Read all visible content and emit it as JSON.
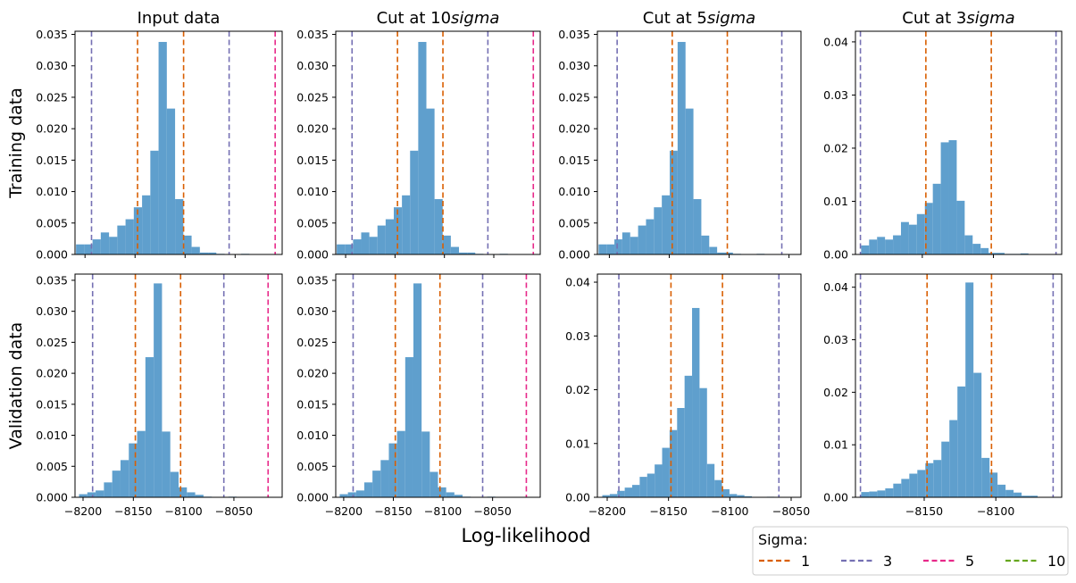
{
  "figure": {
    "xlabel": "Log-likelihood",
    "row_labels": [
      "Training data",
      "Validation data"
    ],
    "column_titles": [
      {
        "prefix": "Input data",
        "italic": ""
      },
      {
        "prefix": "Cut at 10",
        "italic": "sigma"
      },
      {
        "prefix": "Cut at 5",
        "italic": "sigma"
      },
      {
        "prefix": "Cut at 3",
        "italic": "sigma"
      }
    ]
  },
  "colors": {
    "bar": "#5f9fcd",
    "sigma_1": "#d95f02",
    "sigma_3": "#7570b3",
    "sigma_5": "#e7298a",
    "sigma_10": "#66a61e"
  },
  "legend": {
    "title": "Sigma:",
    "placement": "bottom-right",
    "entries": [
      {
        "label": "1",
        "color_key": "sigma_1"
      },
      {
        "label": "3",
        "color_key": "sigma_3"
      },
      {
        "label": "5",
        "color_key": "sigma_5"
      },
      {
        "label": "10",
        "color_key": "sigma_10"
      }
    ]
  },
  "chart_data": [
    {
      "type": "histogram",
      "row": "Training data",
      "column": "Input data",
      "xlim": [
        -8210,
        -8003
      ],
      "ylim": [
        0,
        0.0355
      ],
      "yticks": [
        0.0,
        0.005,
        0.01,
        0.015,
        0.02,
        0.025,
        0.03,
        0.035
      ],
      "ytick_labels": [
        "0.000",
        "0.005",
        "0.010",
        "0.015",
        "0.020",
        "0.025",
        "0.030",
        "0.035"
      ],
      "xticks": [
        -8200,
        -8150,
        -8100,
        -8050
      ],
      "show_xtick_labels": false,
      "bins": {
        "start": -8209,
        "width": 8.25,
        "values": [
          0.0016,
          0.0016,
          0.0024,
          0.0035,
          0.0028,
          0.0046,
          0.0056,
          0.0075,
          0.0094,
          0.0165,
          0.0338,
          0.0232,
          0.0088,
          0.003,
          0.0012,
          0.0003,
          0.0003,
          0.0001,
          0,
          0,
          0.0001,
          0,
          0,
          0,
          0
        ]
      },
      "sigma_lines": [
        {
          "level": "1",
          "x": -8147.5
        },
        {
          "level": "1",
          "x": -8101.5
        },
        {
          "level": "3",
          "x": -8193.5
        },
        {
          "level": "3",
          "x": -8056
        },
        {
          "level": "5",
          "x": -8010
        }
      ]
    },
    {
      "type": "histogram",
      "row": "Training data",
      "column": "Cut at 10sigma",
      "xlim": [
        -8210,
        -8003
      ],
      "ylim": [
        0,
        0.0355
      ],
      "yticks": [
        0.0,
        0.005,
        0.01,
        0.015,
        0.02,
        0.025,
        0.03,
        0.035
      ],
      "ytick_labels": [
        "0.000",
        "0.005",
        "0.010",
        "0.015",
        "0.020",
        "0.025",
        "0.030",
        "0.035"
      ],
      "xticks": [
        -8200,
        -8150,
        -8100,
        -8050
      ],
      "show_xtick_labels": false,
      "bins": {
        "start": -8209,
        "width": 8.25,
        "values": [
          0.0016,
          0.0016,
          0.0024,
          0.0035,
          0.0028,
          0.0046,
          0.0056,
          0.0075,
          0.0094,
          0.0165,
          0.0338,
          0.0232,
          0.0088,
          0.003,
          0.0012,
          0.0003,
          0.0003,
          0.0001,
          0,
          0,
          0.0001,
          0,
          0,
          0,
          0
        ]
      },
      "sigma_lines": [
        {
          "level": "1",
          "x": -8147.5
        },
        {
          "level": "1",
          "x": -8101.5
        },
        {
          "level": "3",
          "x": -8193.5
        },
        {
          "level": "3",
          "x": -8056
        },
        {
          "level": "5",
          "x": -8010
        }
      ]
    },
    {
      "type": "histogram",
      "row": "Training data",
      "column": "Cut at 5sigma",
      "xlim": [
        -8210,
        -8040
      ],
      "ylim": [
        0,
        0.0355
      ],
      "yticks": [
        0.0,
        0.005,
        0.01,
        0.015,
        0.02,
        0.025,
        0.03,
        0.035
      ],
      "ytick_labels": [
        "0.000",
        "0.005",
        "0.010",
        "0.015",
        "0.020",
        "0.025",
        "0.030",
        "0.035"
      ],
      "xticks": [
        -8200,
        -8150,
        -8100,
        -8050
      ],
      "show_xtick_labels": false,
      "bins": {
        "start": -8209,
        "width": 6.6,
        "values": [
          0.0016,
          0.0016,
          0.0024,
          0.0035,
          0.0028,
          0.0046,
          0.0056,
          0.0075,
          0.0094,
          0.0165,
          0.0338,
          0.0232,
          0.0088,
          0.003,
          0.0012,
          0.0003,
          0.0003,
          0.0001,
          0,
          0,
          0.0001,
          0,
          0,
          0,
          0
        ]
      },
      "sigma_lines": [
        {
          "level": "1",
          "x": -8147.5
        },
        {
          "level": "1",
          "x": -8101.5
        },
        {
          "level": "3",
          "x": -8193.5
        },
        {
          "level": "3",
          "x": -8056
        }
      ]
    },
    {
      "type": "histogram",
      "row": "Training data",
      "column": "Cut at 3sigma",
      "xlim": [
        -8197,
        -8052
      ],
      "ylim": [
        0,
        0.042
      ],
      "yticks": [
        0.0,
        0.01,
        0.02,
        0.03,
        0.04
      ],
      "ytick_labels": [
        "0.00",
        "0.01",
        "0.02",
        "0.03",
        "0.04"
      ],
      "xticks": [
        -8150,
        -8100
      ],
      "show_xtick_labels": false,
      "bins": {
        "start": -8193,
        "width": 5.6,
        "values": [
          0.0017,
          0.0028,
          0.0033,
          0.0028,
          0.0036,
          0.0061,
          0.0056,
          0.0076,
          0.0097,
          0.0133,
          0.0211,
          0.0215,
          0.0101,
          0.0036,
          0.002,
          0.0012,
          0.0003,
          0.0003,
          0.0001,
          0.0001,
          0.0002,
          0,
          0,
          0,
          0
        ]
      },
      "sigma_lines": [
        {
          "level": "1",
          "x": -8147.5
        },
        {
          "level": "1",
          "x": -8101.5
        },
        {
          "level": "3",
          "x": -8193.5
        },
        {
          "level": "3",
          "x": -8056
        }
      ]
    },
    {
      "type": "histogram",
      "row": "Validation data",
      "column": "Input data",
      "xlim": [
        -8208,
        -8002
      ],
      "ylim": [
        0,
        0.036
      ],
      "yticks": [
        0.0,
        0.005,
        0.01,
        0.015,
        0.02,
        0.025,
        0.03,
        0.035
      ],
      "ytick_labels": [
        "0.000",
        "0.005",
        "0.010",
        "0.015",
        "0.020",
        "0.025",
        "0.030",
        "0.035"
      ],
      "xticks": [
        -8200,
        -8150,
        -8100,
        -8050
      ],
      "show_xtick_labels": true,
      "xtick_labels": [
        "−8200",
        "−8150",
        "−8100",
        "−8050"
      ],
      "bins": {
        "start": -8204,
        "width": 8.25,
        "values": [
          0.0005,
          0.0008,
          0.0011,
          0.0024,
          0.0043,
          0.006,
          0.0087,
          0.0107,
          0.0226,
          0.0345,
          0.0106,
          0.0041,
          0.0016,
          0.0008,
          0.0004,
          0.0001,
          0,
          0,
          0.0001,
          0,
          0,
          0,
          0,
          0,
          0
        ]
      },
      "sigma_lines": [
        {
          "level": "1",
          "x": -8148
        },
        {
          "level": "1",
          "x": -8103
        },
        {
          "level": "3",
          "x": -8190.5
        },
        {
          "level": "3",
          "x": -8060
        },
        {
          "level": "5",
          "x": -8016
        }
      ]
    },
    {
      "type": "histogram",
      "row": "Validation data",
      "column": "Cut at 10sigma",
      "xlim": [
        -8208,
        -8002
      ],
      "ylim": [
        0,
        0.036
      ],
      "yticks": [
        0.0,
        0.005,
        0.01,
        0.015,
        0.02,
        0.025,
        0.03,
        0.035
      ],
      "ytick_labels": [
        "0.000",
        "0.005",
        "0.010",
        "0.015",
        "0.020",
        "0.025",
        "0.030",
        "0.035"
      ],
      "xticks": [
        -8200,
        -8150,
        -8100,
        -8050
      ],
      "show_xtick_labels": true,
      "xtick_labels": [
        "−8200",
        "−8150",
        "−8100",
        "−8050"
      ],
      "bins": {
        "start": -8204,
        "width": 8.25,
        "values": [
          0.0005,
          0.0008,
          0.0011,
          0.0024,
          0.0043,
          0.006,
          0.0087,
          0.0107,
          0.0226,
          0.0345,
          0.0106,
          0.0041,
          0.0016,
          0.0008,
          0.0004,
          0.0001,
          0,
          0,
          0.0001,
          0,
          0,
          0,
          0,
          0,
          0
        ]
      },
      "sigma_lines": [
        {
          "level": "1",
          "x": -8148
        },
        {
          "level": "1",
          "x": -8103
        },
        {
          "level": "3",
          "x": -8190.5
        },
        {
          "level": "3",
          "x": -8060
        },
        {
          "level": "5",
          "x": -8016
        }
      ]
    },
    {
      "type": "histogram",
      "row": "Validation data",
      "column": "Cut at 5sigma",
      "xlim": [
        -8208,
        -8042
      ],
      "ylim": [
        0,
        0.0415
      ],
      "yticks": [
        0.0,
        0.01,
        0.02,
        0.03,
        0.04
      ],
      "ytick_labels": [
        "0.00",
        "0.01",
        "0.02",
        "0.03",
        "0.04"
      ],
      "xticks": [
        -8200,
        -8150,
        -8100,
        -8050
      ],
      "show_xtick_labels": true,
      "xtick_labels": [
        "−8200",
        "−8150",
        "−8100",
        "−8050"
      ],
      "bins": {
        "start": -8204,
        "width": 6.1,
        "values": [
          0.0004,
          0.0006,
          0.0012,
          0.0018,
          0.0023,
          0.0038,
          0.0044,
          0.0061,
          0.0092,
          0.0125,
          0.0166,
          0.0226,
          0.0352,
          0.0203,
          0.0062,
          0.0032,
          0.0015,
          0.0006,
          0.0004,
          0.0002,
          0,
          0,
          0.0001,
          0,
          0
        ]
      },
      "sigma_lines": [
        {
          "level": "1",
          "x": -8148
        },
        {
          "level": "1",
          "x": -8106
        },
        {
          "level": "3",
          "x": -8190.5
        },
        {
          "level": "3",
          "x": -8060
        }
      ]
    },
    {
      "type": "histogram",
      "row": "Validation data",
      "column": "Cut at 3sigma",
      "xlim": [
        -8198,
        -8054
      ],
      "ylim": [
        0,
        0.0425
      ],
      "yticks": [
        0.0,
        0.01,
        0.02,
        0.03,
        0.04
      ],
      "ytick_labels": [
        "0.00",
        "0.01",
        "0.02",
        "0.03",
        "0.04"
      ],
      "xticks": [
        -8150,
        -8100
      ],
      "show_xtick_labels": true,
      "xtick_labels": [
        "−8150",
        "−8100"
      ],
      "bins": {
        "start": -8194,
        "width": 5.6,
        "values": [
          0.001,
          0.0011,
          0.0013,
          0.0017,
          0.0026,
          0.0035,
          0.0045,
          0.0052,
          0.0065,
          0.0071,
          0.0106,
          0.0147,
          0.0211,
          0.0409,
          0.0237,
          0.0075,
          0.0047,
          0.0024,
          0.0014,
          0.0009,
          0.0003,
          0.0003,
          0,
          0,
          0
        ]
      },
      "sigma_lines": [
        {
          "level": "1",
          "x": -8148
        },
        {
          "level": "1",
          "x": -8103
        },
        {
          "level": "3",
          "x": -8194.5
        },
        {
          "level": "3",
          "x": -8060
        }
      ]
    }
  ]
}
